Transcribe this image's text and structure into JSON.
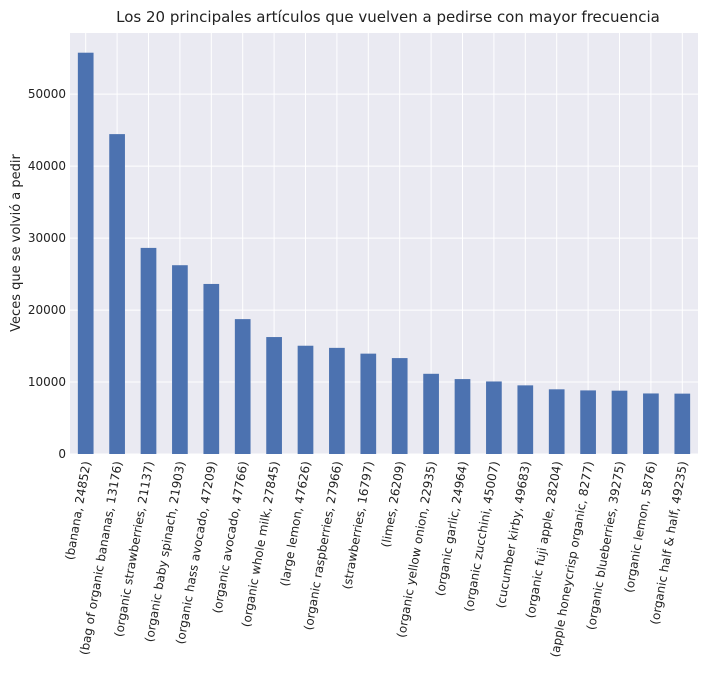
{
  "chart_data": {
    "type": "bar",
    "title": "Los 20 principales artículos que vuelven a pedirse con mayor frecuencia",
    "xlabel": "",
    "ylabel": "Veces que se volvió a pedir",
    "ylim": [
      0,
      58500
    ],
    "yticks": [
      0,
      10000,
      20000,
      30000,
      40000,
      50000
    ],
    "grid": true,
    "bar_color": "#4c72b0",
    "background": "#eaeaf2",
    "categories": [
      "(banana, 24852)",
      "(bag of organic bananas, 13176)",
      "(organic strawberries, 21137)",
      "(organic baby spinach, 21903)",
      "(organic hass avocado, 47209)",
      "(organic avocado, 47766)",
      "(organic whole milk, 27845)",
      "(large lemon, 47626)",
      "(organic raspberries, 27966)",
      "(strawberries, 16797)",
      "(limes, 26209)",
      "(organic yellow onion, 22935)",
      "(organic garlic, 24964)",
      "(organic zucchini, 45007)",
      "(cucumber kirby, 49683)",
      "(organic fuji apple, 28204)",
      "(apple honeycrisp organic, 8277)",
      "(organic blueberries, 39275)",
      "(organic lemon, 5876)",
      "(organic half & half, 49235)"
    ],
    "values": [
      55763,
      44450,
      28639,
      26233,
      23629,
      18743,
      16251,
      15044,
      14748,
      13945,
      13327,
      11145,
      10411,
      10076,
      9538,
      8989,
      8836,
      8799,
      8412,
      8389
    ]
  }
}
